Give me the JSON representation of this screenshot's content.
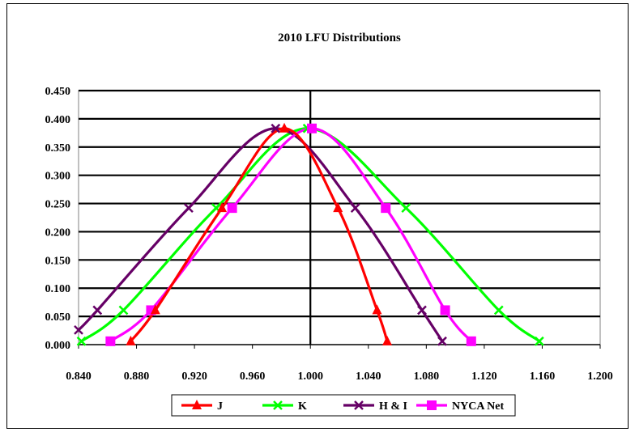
{
  "chart_data": {
    "type": "line",
    "title": "2010 LFU Distributions",
    "xlabel": "",
    "ylabel": "",
    "xlim": [
      0.84,
      1.2
    ],
    "ylim": [
      0,
      0.45
    ],
    "x_ticks": [
      "0.840",
      "0.880",
      "0.920",
      "0.960",
      "1.000",
      "1.040",
      "1.080",
      "1.120",
      "1.160",
      "1.200"
    ],
    "y_ticks": [
      "0.000",
      "0.050",
      "0.100",
      "0.150",
      "0.200",
      "0.250",
      "0.300",
      "0.350",
      "0.400",
      "0.450"
    ],
    "grid": "horizontal",
    "legend": "bottom",
    "series": [
      {
        "name": "J",
        "color": "#ff0000",
        "marker": "triangle",
        "points": [
          [
            0.876,
            0.006
          ],
          [
            0.893,
            0.061
          ],
          [
            0.939,
            0.242
          ],
          [
            0.982,
            0.383
          ],
          [
            1.019,
            0.242
          ],
          [
            1.046,
            0.061
          ],
          [
            1.053,
            0.006
          ]
        ]
      },
      {
        "name": "K",
        "color": "#00ff00",
        "marker": "x",
        "points": [
          [
            0.842,
            0.006
          ],
          [
            0.871,
            0.061
          ],
          [
            0.935,
            0.242
          ],
          [
            0.998,
            0.383
          ],
          [
            1.066,
            0.242
          ],
          [
            1.13,
            0.061
          ],
          [
            1.158,
            0.006
          ]
        ]
      },
      {
        "name": "H & I",
        "color": "#660066",
        "marker": "x",
        "points": [
          [
            0.84,
            0.026
          ],
          [
            0.853,
            0.061
          ],
          [
            0.916,
            0.242
          ],
          [
            0.976,
            0.383
          ],
          [
            1.031,
            0.242
          ],
          [
            1.077,
            0.061
          ],
          [
            1.091,
            0.006
          ]
        ]
      },
      {
        "name": "NYCA Net",
        "color": "#ff00ff",
        "marker": "square",
        "points": [
          [
            0.862,
            0.006
          ],
          [
            0.89,
            0.061
          ],
          [
            0.946,
            0.242
          ],
          [
            1.001,
            0.383
          ],
          [
            1.052,
            0.242
          ],
          [
            1.093,
            0.061
          ],
          [
            1.111,
            0.006
          ]
        ]
      }
    ]
  }
}
